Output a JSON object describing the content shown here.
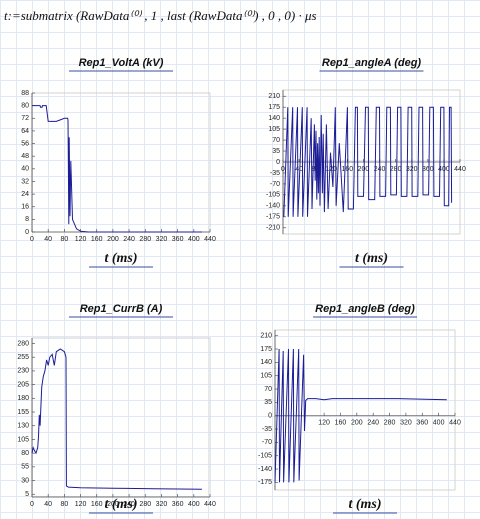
{
  "formula": "t:=submatrix (RawData⁽⁰⁾ , 1 , last (RawData⁽⁰⁾) , 0 , 0) · μs",
  "chart_data": [
    {
      "type": "line",
      "title": "Rep1_VoltA (kV)",
      "x_label": "t (ms)",
      "color": "#1c1c96",
      "x": [
        0,
        20,
        21,
        25,
        26,
        35,
        40,
        60,
        70,
        80,
        85,
        88,
        89,
        90,
        91,
        92,
        94,
        96,
        100,
        105,
        110,
        120,
        140,
        200,
        300,
        420
      ],
      "values": [
        80,
        80,
        79,
        79,
        80,
        80,
        70,
        70,
        71,
        72,
        72,
        72,
        71,
        40,
        5,
        60,
        10,
        45,
        8,
        5,
        2,
        0.5,
        0,
        0,
        0,
        0
      ],
      "xlim": [
        0,
        440
      ],
      "xticks": [
        0,
        40,
        80,
        120,
        160,
        200,
        240,
        280,
        320,
        360,
        400,
        440
      ],
      "ylim": [
        0,
        88
      ],
      "yticks": [
        0,
        8,
        16,
        24,
        32,
        40,
        48,
        56,
        64,
        72,
        80,
        88
      ]
    },
    {
      "type": "line",
      "title": "Rep1_angleA (deg)",
      "x_label": "t (ms)",
      "color": "#1c1c96",
      "x": [
        2,
        12,
        13,
        24,
        25,
        36,
        37,
        48,
        49,
        60,
        61,
        70,
        72,
        78,
        80,
        82,
        84,
        86,
        88,
        90,
        92,
        95,
        98,
        100,
        103,
        108,
        112,
        118,
        124,
        130,
        132,
        140,
        150,
        160,
        162,
        175,
        180,
        185,
        186,
        200,
        205,
        212,
        213,
        228,
        232,
        240,
        241,
        255,
        258,
        267,
        268,
        282,
        285,
        293,
        294,
        308,
        311,
        320,
        321,
        335,
        338,
        347,
        348,
        362,
        365,
        374,
        375,
        389,
        392,
        400,
        401,
        412,
        414,
        418,
        419
      ],
      "values": [
        -175,
        175,
        -175,
        175,
        -175,
        175,
        -175,
        175,
        -175,
        175,
        -175,
        140,
        -150,
        120,
        -60,
        100,
        -120,
        60,
        -100,
        80,
        -140,
        150,
        -100,
        90,
        -160,
        120,
        -150,
        30,
        -80,
        175,
        -140,
        60,
        -160,
        175,
        -150,
        -150,
        175,
        175,
        -110,
        -110,
        175,
        175,
        -120,
        -120,
        175,
        175,
        -110,
        -110,
        175,
        175,
        -105,
        -105,
        175,
        175,
        -110,
        -110,
        175,
        175,
        -110,
        -110,
        175,
        175,
        -105,
        -105,
        175,
        175,
        -110,
        -110,
        175,
        175,
        -140,
        -140,
        175,
        175,
        -130
      ],
      "xlim": [
        0,
        440
      ],
      "xticks": [
        0,
        40,
        80,
        120,
        160,
        200,
        240,
        280,
        320,
        360,
        400,
        440
      ],
      "ylim": [
        -230,
        230
      ],
      "yticks": [
        -210,
        -175,
        -140,
        -105,
        -70,
        -35,
        0,
        35,
        70,
        105,
        140,
        175,
        210
      ]
    },
    {
      "type": "line",
      "title": "Rep1_CurrB (A)",
      "x_label": "t (ms)",
      "color": "#1c1c96",
      "x": [
        0,
        3,
        6,
        10,
        14,
        16,
        18,
        20,
        24,
        28,
        32,
        36,
        40,
        44,
        50,
        55,
        60,
        70,
        80,
        84,
        85,
        90,
        120,
        200,
        300,
        420
      ],
      "values": [
        80,
        90,
        85,
        80,
        90,
        110,
        150,
        130,
        200,
        220,
        230,
        250,
        240,
        255,
        260,
        240,
        265,
        270,
        265,
        255,
        20,
        18,
        17,
        16,
        15,
        14
      ],
      "xlim": [
        0,
        440
      ],
      "xticks": [
        0,
        40,
        80,
        120,
        160,
        200,
        240,
        280,
        320,
        360,
        400,
        440
      ],
      "ylim": [
        0,
        290
      ],
      "yticks": [
        5,
        30,
        55,
        80,
        105,
        130,
        155,
        180,
        205,
        230,
        255,
        280
      ]
    },
    {
      "type": "line",
      "title": "Rep1_angleB (deg)",
      "x_label": "t (ms)",
      "color": "#1c1c96",
      "x": [
        0,
        10,
        11,
        20,
        21,
        33,
        34,
        45,
        46,
        58,
        59,
        70,
        72,
        75,
        80,
        100,
        120,
        140,
        200,
        300,
        420
      ],
      "values": [
        -175,
        175,
        -175,
        170,
        -175,
        175,
        -175,
        175,
        -175,
        175,
        -170,
        160,
        -40,
        40,
        45,
        45,
        42,
        45,
        45,
        45,
        42
      ],
      "xlim": [
        0,
        440
      ],
      "xticks": [
        120,
        160,
        200,
        240,
        280,
        320,
        360,
        400,
        440
      ],
      "ylim": [
        -195,
        225
      ],
      "yticks": [
        -175,
        -140,
        -105,
        -70,
        -35,
        0,
        35,
        70,
        105,
        140,
        175,
        210
      ]
    }
  ]
}
